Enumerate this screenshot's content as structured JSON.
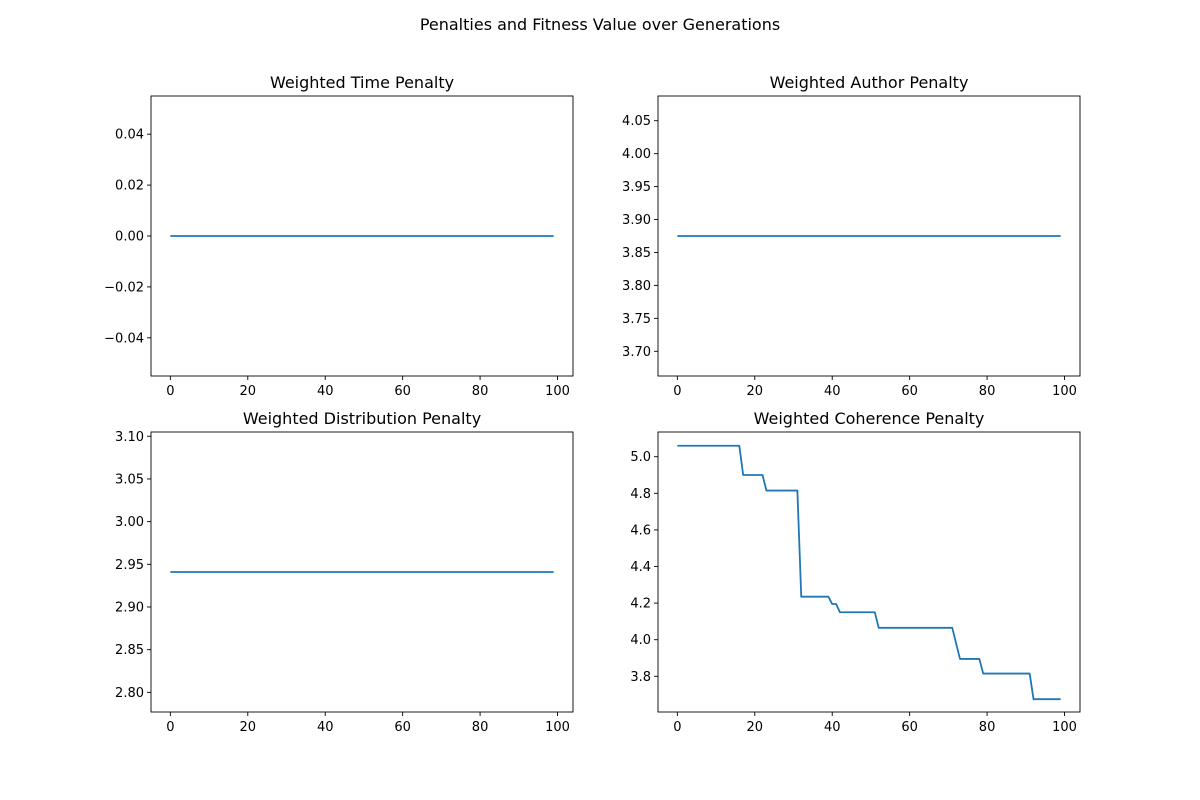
{
  "figure": {
    "title": "Penalties and Fitness Value over Generations",
    "line_color": "#1f77b4"
  },
  "chart_data": [
    {
      "type": "line",
      "title": "Weighted Time Penalty",
      "xlabel": "",
      "ylabel": "",
      "xlim": [
        -5,
        104
      ],
      "ylim": [
        -0.055,
        0.055
      ],
      "xticks": [
        0,
        20,
        40,
        60,
        80,
        100
      ],
      "xtick_labels": [
        "0",
        "20",
        "40",
        "60",
        "80",
        "100"
      ],
      "yticks": [
        -0.04,
        -0.02,
        0.0,
        0.02,
        0.04
      ],
      "ytick_labels": [
        "−0.04",
        "−0.02",
        "0.00",
        "0.02",
        "0.04"
      ],
      "grid": false,
      "series": [
        {
          "x": [
            0,
            99
          ],
          "y": [
            0.0,
            0.0
          ]
        }
      ]
    },
    {
      "type": "line",
      "title": "Weighted Author Penalty",
      "xlabel": "",
      "ylabel": "",
      "xlim": [
        -5,
        104
      ],
      "ylim": [
        3.6625,
        4.0875
      ],
      "xticks": [
        0,
        20,
        40,
        60,
        80,
        100
      ],
      "xtick_labels": [
        "0",
        "20",
        "40",
        "60",
        "80",
        "100"
      ],
      "yticks": [
        3.7,
        3.75,
        3.8,
        3.85,
        3.9,
        3.95,
        4.0,
        4.05
      ],
      "ytick_labels": [
        "3.70",
        "3.75",
        "3.80",
        "3.85",
        "3.90",
        "3.95",
        "4.00",
        "4.05"
      ],
      "grid": false,
      "series": [
        {
          "x": [
            0,
            99
          ],
          "y": [
            3.875,
            3.875
          ]
        }
      ]
    },
    {
      "type": "line",
      "title": "Weighted Distribution Penalty",
      "xlabel": "",
      "ylabel": "",
      "xlim": [
        -5,
        104
      ],
      "ylim": [
        2.777,
        3.105
      ],
      "xticks": [
        0,
        20,
        40,
        60,
        80,
        100
      ],
      "xtick_labels": [
        "0",
        "20",
        "40",
        "60",
        "80",
        "100"
      ],
      "yticks": [
        2.8,
        2.85,
        2.9,
        2.95,
        3.0,
        3.05,
        3.1
      ],
      "ytick_labels": [
        "2.80",
        "2.85",
        "2.90",
        "2.95",
        "3.00",
        "3.05",
        "3.10"
      ],
      "grid": false,
      "series": [
        {
          "x": [
            0,
            99
          ],
          "y": [
            2.941,
            2.941
          ]
        }
      ]
    },
    {
      "type": "line",
      "title": "Weighted Coherence Penalty",
      "xlabel": "",
      "ylabel": "",
      "xlim": [
        -5,
        104
      ],
      "ylim": [
        3.605,
        5.135
      ],
      "xticks": [
        0,
        20,
        40,
        60,
        80,
        100
      ],
      "xtick_labels": [
        "0",
        "20",
        "40",
        "60",
        "80",
        "100"
      ],
      "yticks": [
        3.8,
        4.0,
        4.2,
        4.4,
        4.6,
        4.8,
        5.0
      ],
      "ytick_labels": [
        "3.8",
        "4.0",
        "4.2",
        "4.4",
        "4.6",
        "4.8",
        "5.0"
      ],
      "grid": false,
      "series": [
        {
          "x": [
            0,
            16,
            17,
            22,
            23,
            31,
            32,
            39,
            40,
            41,
            42,
            43,
            51,
            52,
            71,
            73,
            78,
            79,
            91,
            92,
            99
          ],
          "y": [
            5.06,
            5.06,
            4.9,
            4.9,
            4.815,
            4.815,
            4.235,
            4.235,
            4.195,
            4.195,
            4.15,
            4.15,
            4.15,
            4.065,
            4.065,
            3.895,
            3.895,
            3.815,
            3.815,
            3.675,
            3.675
          ]
        }
      ]
    }
  ]
}
